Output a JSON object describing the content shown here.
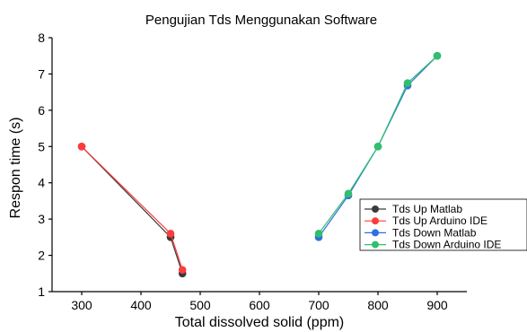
{
  "chart_data": {
    "type": "line",
    "title": "Pengujian Tds Menggunakan Software",
    "xlabel": "Total dissolved solid (ppm)",
    "ylabel": "Respon time (s)",
    "xlim": [
      250,
      950
    ],
    "ylim": [
      1,
      8
    ],
    "x_ticks": [
      300,
      400,
      500,
      600,
      700,
      800,
      900
    ],
    "y_ticks": [
      1,
      2,
      3,
      4,
      5,
      6,
      7,
      8
    ],
    "grid": false,
    "legend_position": "right",
    "series": [
      {
        "name": "Tds Up Matlab",
        "color": "#3a3a3a",
        "x": [
          300,
          450,
          470
        ],
        "y": [
          5.0,
          2.5,
          1.5
        ]
      },
      {
        "name": "Tds Up Arduino IDE",
        "color": "#ff3b3b",
        "x": [
          300,
          450,
          470
        ],
        "y": [
          5.0,
          2.6,
          1.6
        ]
      },
      {
        "name": "Tds Down Matlab",
        "color": "#2f6fe0",
        "x": [
          700,
          750,
          800,
          850,
          900
        ],
        "y": [
          2.5,
          3.65,
          5.0,
          6.68,
          7.5
        ]
      },
      {
        "name": "Tds Down Arduino IDE",
        "color": "#2fbf6e",
        "x": [
          700,
          750,
          800,
          850,
          900
        ],
        "y": [
          2.6,
          3.7,
          5.0,
          6.75,
          7.5
        ]
      }
    ]
  }
}
